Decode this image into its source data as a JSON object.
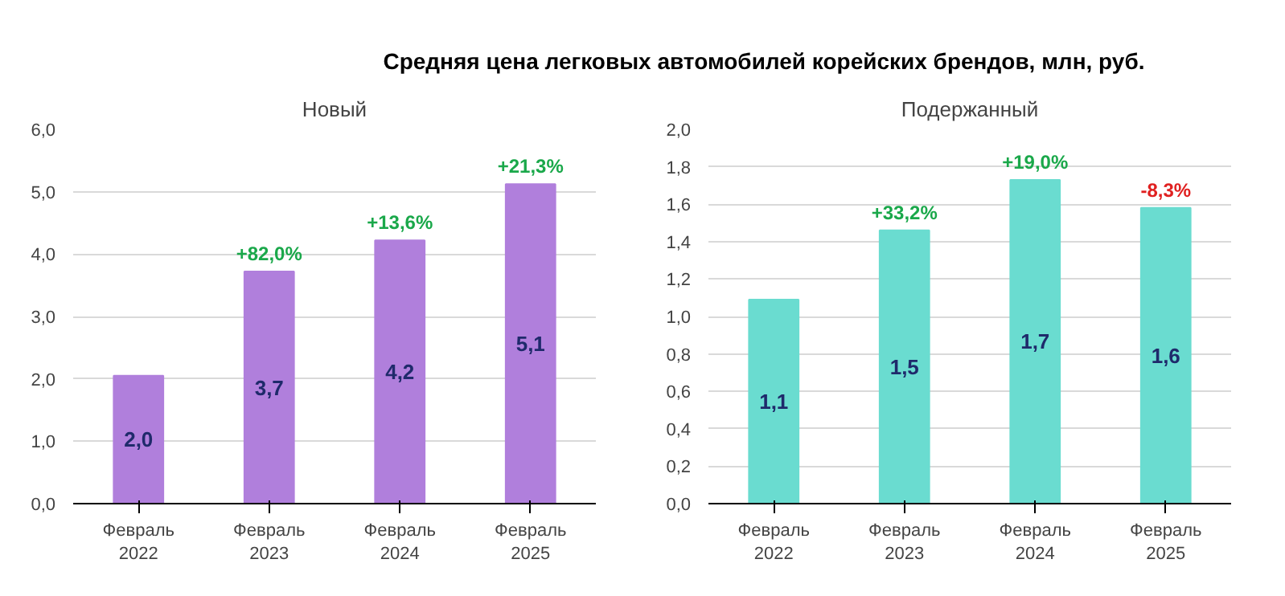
{
  "chart_data": [
    {
      "type": "bar",
      "title": "Новый",
      "annotations": [
        "Средняя цена легковых автомобилей корейских брендов, млн, руб.",
        {
          "text": "+82,0%",
          "x": "Февраль\n2023",
          "y": 3.72
        },
        {
          "text": "+13,6%",
          "x": "Февраль\n2024",
          "y": 4.22
        },
        {
          "text": "+21,3%",
          "x": "Февраль\n2025",
          "y": 5.12
        }
      ],
      "categories": [
        "Февраль\n2022",
        "Февраль\n2023",
        "Февраль\n2024",
        "Февраль\n2025"
      ],
      "values": [
        2.05,
        3.72,
        4.22,
        5.12
      ],
      "value_labels": [
        "2,0",
        "3,7",
        "4,2",
        "5,1"
      ],
      "color": "#b07fdc",
      "ylim": [
        0,
        6
      ],
      "yticks": [
        {
          "value": 0,
          "label": "0,0"
        },
        {
          "value": 1,
          "label": "1,0"
        },
        {
          "value": 2,
          "label": "2,0"
        },
        {
          "value": 3,
          "label": "3,0"
        },
        {
          "value": 4,
          "label": "4,0"
        },
        {
          "value": 5,
          "label": "5,0"
        },
        {
          "value": 6,
          "label": "6,0"
        }
      ],
      "grid": "y"
    },
    {
      "type": "bar",
      "title": "Подержанный",
      "annotations": [
        {
          "text": "+33,2%",
          "x": "Февраль\n2023",
          "y": 1.46
        },
        {
          "text": "+19,0%",
          "x": "Февраль\n2024",
          "y": 1.73
        },
        {
          "text": "-8,3%",
          "x": "Февраль\n2025",
          "y": 1.58
        }
      ],
      "categories": [
        "Февраль\n2022",
        "Февраль\n2023",
        "Февраль\n2024",
        "Февраль\n2025"
      ],
      "values": [
        1.09,
        1.46,
        1.73,
        1.58
      ],
      "value_labels": [
        "1,1",
        "1,5",
        "1,7",
        "1,6"
      ],
      "color": "#6adcd0",
      "ylim": [
        0,
        2
      ],
      "yticks": [
        {
          "value": 0,
          "label": "0,0"
        },
        {
          "value": 0.2,
          "label": "0,2"
        },
        {
          "value": 0.4,
          "label": "0,4"
        },
        {
          "value": 0.6,
          "label": "0,6"
        },
        {
          "value": 0.8,
          "label": "0,8"
        },
        {
          "value": 1.0,
          "label": "1,0"
        },
        {
          "value": 1.2,
          "label": "1,2"
        },
        {
          "value": 1.4,
          "label": "1,4"
        },
        {
          "value": 1.6,
          "label": "1,6"
        },
        {
          "value": 1.8,
          "label": "1,8"
        },
        {
          "value": 2.0,
          "label": "2,0"
        }
      ],
      "grid": "y"
    }
  ]
}
